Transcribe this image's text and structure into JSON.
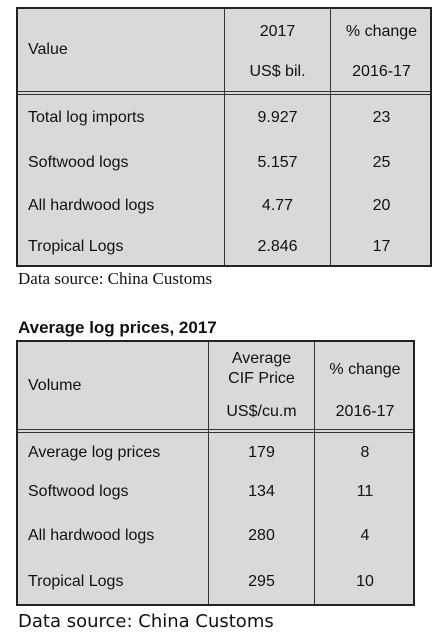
{
  "table1": {
    "header": {
      "col1": "Value",
      "col2_line1": "2017",
      "col2_line2": "US$ bil.",
      "col3_line1": "% change",
      "col3_line2": "2016-17"
    },
    "rows": [
      {
        "label": "Total log imports",
        "value": "9.927",
        "change": "23"
      },
      {
        "label": "Softwood logs",
        "value": "5.157",
        "change": "25"
      },
      {
        "label": "All hardwood logs",
        "value": "4.77",
        "change": "20"
      },
      {
        "label": "Tropical Logs",
        "value": "2.846",
        "change": "17"
      }
    ],
    "source": "Data source: China Customs"
  },
  "table2": {
    "title": "Average log prices, 2017",
    "header": {
      "col1": "Volume",
      "col2_line1": "Average",
      "col2_line2": "CIF Price",
      "col2_line3": "US$/cu.m",
      "col3_line1": "% change",
      "col3_line2": "2016-17"
    },
    "rows": [
      {
        "label": "Average log prices",
        "value": "179",
        "change": "8"
      },
      {
        "label": "Softwood logs",
        "value": "134",
        "change": "11"
      },
      {
        "label": "All hardwood logs",
        "value": "280",
        "change": "4"
      },
      {
        "label": "Tropical Logs",
        "value": "295",
        "change": "10"
      }
    ],
    "source": "Data source: China Customs"
  }
}
